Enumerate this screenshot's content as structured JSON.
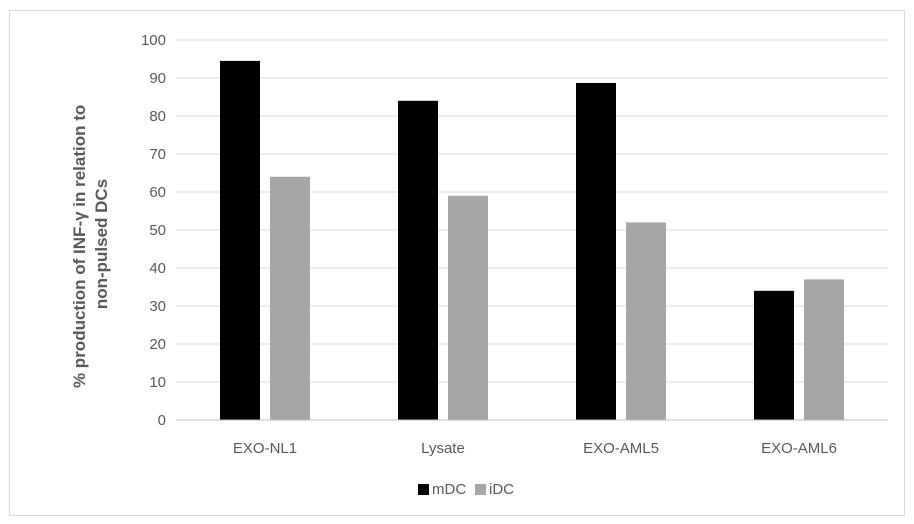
{
  "chart_data": {
    "type": "bar",
    "title": "",
    "xlabel": "",
    "ylabel_lines": [
      "% production of INF-γ in relation to",
      "non-pulsed DCs"
    ],
    "categories": [
      "EXO-NL1",
      "Lysate",
      "EXO-AML5",
      "EXO-AML6"
    ],
    "series": [
      {
        "name": "mDC",
        "color": "#000000",
        "values": [
          94.5,
          84,
          88.7,
          34
        ]
      },
      {
        "name": "iDC",
        "color": "#a6a6a6",
        "values": [
          64,
          59,
          52,
          37
        ]
      }
    ],
    "ylim": [
      0,
      100
    ],
    "yticks": [
      0,
      10,
      20,
      30,
      40,
      50,
      60,
      70,
      80,
      90,
      100
    ],
    "grid": true,
    "legend_position": "bottom"
  }
}
